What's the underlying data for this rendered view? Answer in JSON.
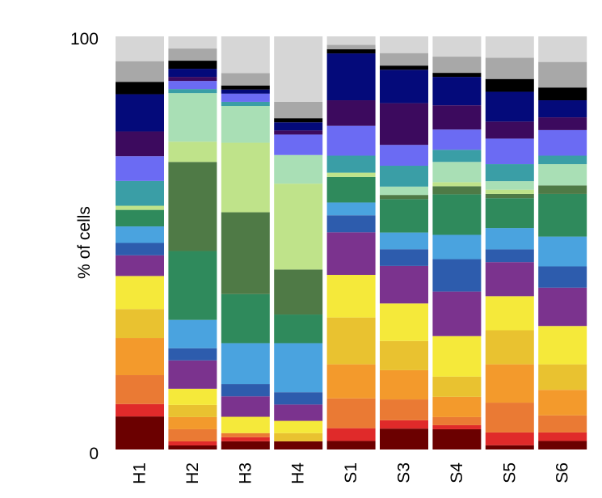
{
  "chart_data": {
    "type": "bar",
    "stacked": true,
    "ylabel": "% of cells",
    "xlabel": "",
    "ylim": [
      0,
      100
    ],
    "y_ticks": [
      "0",
      "100"
    ],
    "grid": false,
    "legend": "none",
    "categories": [
      "H1",
      "H2",
      "H3",
      "H4",
      "S1",
      "S3",
      "S4",
      "S5",
      "S6"
    ],
    "segment_colors": [
      "#6b0000",
      "#e02a2a",
      "#ea7a34",
      "#f39a2c",
      "#e9c230",
      "#f5e93a",
      "#7b338e",
      "#2d5cad",
      "#4aa3df",
      "#2f8a5c",
      "#4f7a46",
      "#bfe38a",
      "#a9dfb5",
      "#3a9ea6",
      "#6b6bf3",
      "#3c0a5e",
      "#040a7a",
      "#000000",
      "#a8a8a8",
      "#d6d6d6"
    ],
    "stacks": [
      [
        8,
        3,
        7,
        9,
        7,
        8,
        5,
        3,
        4,
        4,
        0,
        1,
        0,
        6,
        6,
        6,
        9,
        3,
        5,
        6
      ],
      [
        1,
        1,
        3,
        3,
        3,
        4,
        7,
        3,
        7,
        17,
        22,
        5,
        12,
        1,
        2,
        1,
        2,
        2,
        3,
        3
      ],
      [
        2,
        1,
        1,
        0,
        0,
        4,
        5,
        3,
        10,
        12,
        20,
        17,
        9,
        1,
        2,
        0,
        1,
        1,
        3,
        9
      ],
      [
        2,
        0,
        0,
        0,
        2,
        3,
        4,
        3,
        12,
        7,
        11,
        21,
        7,
        0,
        5,
        1,
        2,
        1,
        4,
        16
      ],
      [
        2,
        3,
        7,
        8,
        11,
        10,
        10,
        4,
        3,
        6,
        0,
        1,
        0,
        4,
        7,
        6,
        11,
        1,
        1,
        2
      ],
      [
        5,
        2,
        5,
        7,
        7,
        9,
        9,
        4,
        4,
        8,
        1,
        0,
        2,
        5,
        5,
        10,
        8,
        1,
        3,
        4
      ],
      [
        5,
        1,
        2,
        5,
        5,
        10,
        11,
        8,
        6,
        10,
        2,
        1,
        5,
        3,
        5,
        6,
        7,
        1,
        4,
        5
      ],
      [
        1,
        3,
        7,
        9,
        8,
        8,
        8,
        3,
        5,
        7,
        1,
        1,
        2,
        4,
        6,
        4,
        7,
        3,
        5,
        5
      ],
      [
        2,
        2,
        4,
        6,
        6,
        9,
        9,
        5,
        7,
        10,
        2,
        0,
        5,
        2,
        6,
        3,
        4,
        3,
        6,
        6
      ]
    ]
  }
}
